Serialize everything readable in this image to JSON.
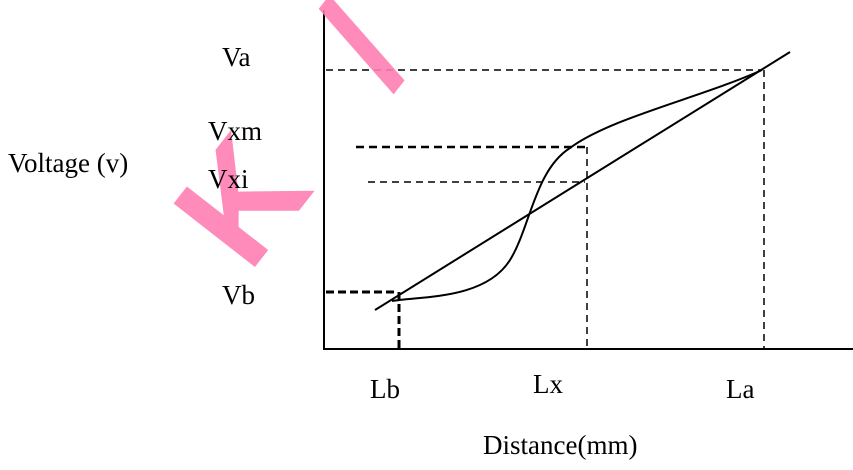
{
  "labels": {
    "ylabel": "Voltage (v)",
    "xlabel": "Distance(mm)",
    "va": "Va",
    "vxm": "Vxm",
    "vxi": "Vxi",
    "vb": "Vb",
    "lb": "Lb",
    "lx": "Lx",
    "la": "La"
  },
  "watermark": "K / CONFI",
  "colors": {
    "ink": "#000000",
    "watermark": "#ff7fb4"
  }
}
